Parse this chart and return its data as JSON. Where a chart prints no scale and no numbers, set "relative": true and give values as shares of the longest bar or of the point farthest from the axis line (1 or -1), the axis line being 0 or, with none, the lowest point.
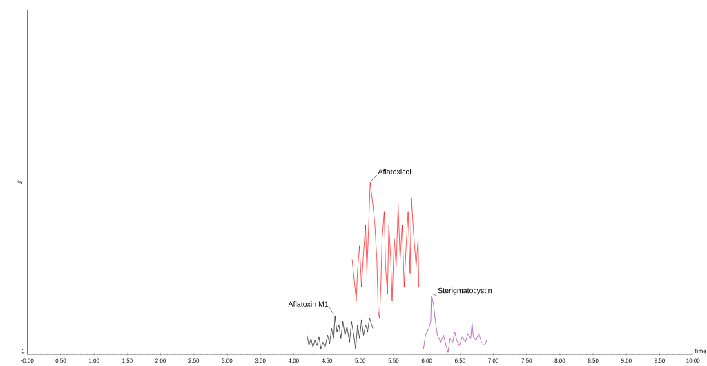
{
  "chart_data": {
    "type": "line",
    "relative": true,
    "xlabel": "Time",
    "ylabel": "%",
    "marker": "none",
    "line_style": "solid",
    "xlim": [
      0,
      10
    ],
    "xticks": [
      {
        "value": 0,
        "label": "-0.00"
      },
      {
        "value": 0.5,
        "label": "0.50"
      },
      {
        "value": 1,
        "label": "1.00"
      },
      {
        "value": 1.5,
        "label": "1.50"
      },
      {
        "value": 2,
        "label": "2.00"
      },
      {
        "value": 2.5,
        "label": "2.50"
      },
      {
        "value": 3,
        "label": "3.00"
      },
      {
        "value": 3.5,
        "label": "3.50"
      },
      {
        "value": 4,
        "label": "4.00"
      },
      {
        "value": 4.5,
        "label": "4.50"
      },
      {
        "value": 5,
        "label": "5.00"
      },
      {
        "value": 5.5,
        "label": "5.50"
      },
      {
        "value": 6,
        "label": "6.00"
      },
      {
        "value": 6.5,
        "label": "6.50"
      },
      {
        "value": 7,
        "label": "7.00"
      },
      {
        "value": 7.5,
        "label": "7.50"
      },
      {
        "value": 8,
        "label": "8.00"
      },
      {
        "value": 8.5,
        "label": "8.50"
      },
      {
        "value": 9,
        "label": "9.00"
      },
      {
        "value": 9.5,
        "label": "9.50"
      },
      {
        "value": 10,
        "label": "10.00"
      }
    ],
    "annotations": [
      "1"
    ],
    "series": [
      {
        "name": "Aflatoxin M1",
        "color": "#000000",
        "x": [
          4.2,
          4.23,
          4.26,
          4.29,
          4.32,
          4.35,
          4.38,
          4.41,
          4.44,
          4.47,
          4.51,
          4.54,
          4.57,
          4.6,
          4.62,
          4.65,
          4.68,
          4.71,
          4.74,
          4.77,
          4.8,
          4.84,
          4.87,
          4.9,
          4.93,
          4.96,
          4.99,
          5.02,
          5.05,
          5.08,
          5.11,
          5.14,
          5.19
        ],
        "values": [
          0.11,
          0.05,
          0.09,
          0.04,
          0.08,
          0.05,
          0.1,
          0.03,
          0.07,
          0.04,
          0.11,
          0.06,
          0.15,
          0.09,
          0.22,
          0.13,
          0.17,
          0.09,
          0.19,
          0.11,
          0.16,
          0.07,
          0.19,
          0.12,
          0.03,
          0.17,
          0.09,
          0.2,
          0.11,
          0.17,
          0.13,
          0.21,
          0.15
        ]
      },
      {
        "name": "Aflatoxicol",
        "color": "#ff0000",
        "x": [
          4.88,
          4.91,
          4.94,
          4.96,
          4.99,
          5.02,
          5.05,
          5.08,
          5.1,
          5.12,
          5.15,
          5.19,
          5.22,
          5.25,
          5.27,
          5.29,
          5.31,
          5.33,
          5.36,
          5.38,
          5.41,
          5.43,
          5.46,
          5.48,
          5.51,
          5.54,
          5.57,
          5.6,
          5.63,
          5.66,
          5.69,
          5.72,
          5.75,
          5.77,
          5.8,
          5.84,
          5.87,
          5.88
        ],
        "values": [
          0.55,
          0.43,
          0.31,
          0.49,
          0.63,
          0.39,
          0.59,
          0.75,
          0.47,
          0.67,
          1,
          0.87,
          0.75,
          0.55,
          0.25,
          0.21,
          0.39,
          0.67,
          0.83,
          0.51,
          0.35,
          0.75,
          0.55,
          0.31,
          0.67,
          0.51,
          0.87,
          0.55,
          0.75,
          0.39,
          0.63,
          0.83,
          0.47,
          0.91,
          0.71,
          0.51,
          0.67,
          0.39
        ]
      },
      {
        "name": "Sterigmatocystin",
        "color": "#a0209f",
        "x": [
          5.95,
          5.98,
          6.03,
          6.06,
          6.07,
          6.1,
          6.13,
          6.16,
          6.21,
          6.25,
          6.29,
          6.32,
          6.35,
          6.39,
          6.42,
          6.45,
          6.49,
          6.53,
          6.58,
          6.62,
          6.66,
          6.68,
          6.7,
          6.74,
          6.78,
          6.82,
          6.87,
          6.9
        ],
        "values": [
          0.03,
          0.11,
          0.15,
          0.19,
          0.34,
          0.29,
          0.19,
          0.11,
          0.07,
          0.11,
          0.05,
          0.01,
          0.09,
          0.07,
          0.13,
          0.08,
          0.05,
          0.1,
          0.07,
          0.12,
          0.09,
          0.18,
          0.1,
          0.08,
          0.12,
          0.07,
          0.05,
          0.08
        ]
      }
    ]
  }
}
